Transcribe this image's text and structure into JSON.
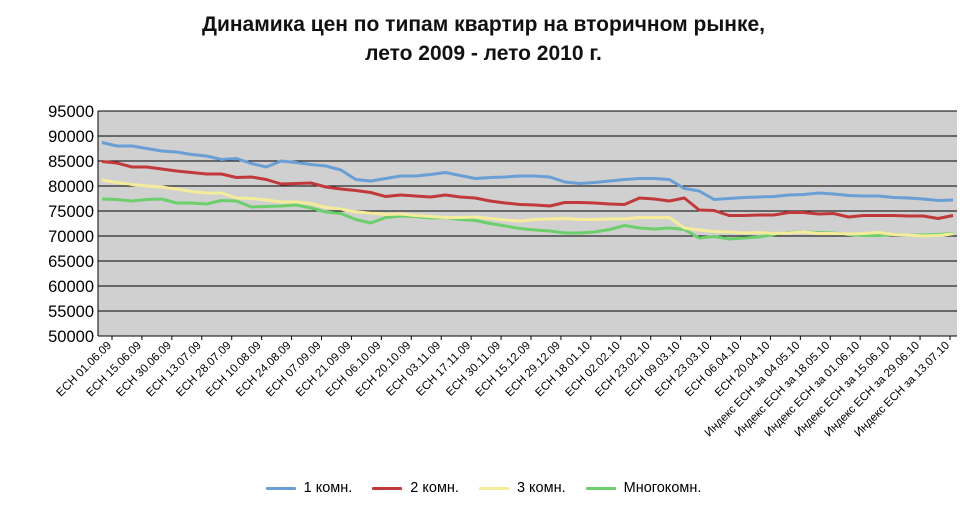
{
  "chart_data": {
    "type": "line",
    "title_line1": "Динамика цен по типам квартир на вторичном рынке,",
    "title_line2": "лето 2009 - лето 2010 г.",
    "xlabel": "",
    "ylabel": "",
    "ylim": [
      50000,
      95000
    ],
    "y_ticks": [
      "95000",
      "90000",
      "85000",
      "80000",
      "75000",
      "70000",
      "65000",
      "60000",
      "55000",
      "50000"
    ],
    "grid": true,
    "legend_position": "bottom",
    "x_tick_labels": [
      "ЕСН 01.06.09",
      "ЕСН 15.06.09",
      "ЕСН 30.06.09",
      "ЕСН 13.07.09",
      "ЕСН 28.07.09",
      "ЕСН 10.08.09",
      "ЕСН 24.08.09",
      "ЕСН 07.09.09",
      "ЕСН 21.09.09",
      "ЕСН 06.10.09",
      "ЕСН 20.10.09",
      "ЕСН 03.11.09",
      "ЕСН 17.11.09",
      "ЕСН 30.11.09",
      "ЕСН 15.12.09",
      "ЕСН 29.12.09",
      "ЕСН 18.01.10",
      "ЕСН 02.02.10",
      "ЕСН 23.02.10",
      "ЕСН 09.03.10",
      "ЕСН 23.03.10",
      "ЕСН 06.04.10",
      "ЕСН 20.04.10",
      "Индекс ЕСН за 04.05.10",
      "Индекс ЕСН за 18.05.10",
      "Индекс ЕСН за 01.06.10",
      "Индекс ЕСН за 15.06.10",
      "Индекс ЕСН за 29.06.10",
      "Индекс ЕСН за 13.07.10"
    ],
    "series": [
      {
        "name": "1 комн.",
        "color": "#6a9fd6",
        "values": [
          88700,
          88000,
          88000,
          87500,
          87000,
          86800,
          86300,
          86000,
          85300,
          85500,
          84500,
          83800,
          85000,
          84700,
          84300,
          84000,
          83200,
          81300,
          81000,
          81500,
          82000,
          82000,
          82300,
          82700,
          82100,
          81500,
          81700,
          81800,
          82000,
          82000,
          81800,
          80800,
          80500,
          80700,
          81000,
          81300,
          81500,
          81500,
          81300,
          79500,
          79000,
          77300,
          77500,
          77700,
          77800,
          77900,
          78200,
          78300,
          78600,
          78400,
          78100,
          78000,
          78000,
          77700,
          77600,
          77400,
          77100,
          77200
        ]
      },
      {
        "name": "2 комн.",
        "color": "#c0393b",
        "values": [
          84900,
          84600,
          83800,
          83800,
          83400,
          83000,
          82700,
          82400,
          82400,
          81700,
          81800,
          81300,
          80400,
          80500,
          80600,
          79800,
          79400,
          79100,
          78700,
          77900,
          78200,
          78000,
          77800,
          78200,
          77800,
          77600,
          77000,
          76600,
          76300,
          76200,
          76000,
          76700,
          76700,
          76600,
          76400,
          76300,
          77600,
          77400,
          77000,
          77600,
          75200,
          75100,
          74100,
          74100,
          74200,
          74200,
          74700,
          74700,
          74400,
          74500,
          73800,
          74100,
          74100,
          74100,
          74000,
          74000,
          73500,
          74100
        ]
      },
      {
        "name": "3 комн.",
        "color": "#f4ec9a",
        "values": [
          81200,
          80700,
          80300,
          80000,
          79800,
          79400,
          78900,
          78600,
          78600,
          77600,
          77500,
          77200,
          76800,
          76800,
          76500,
          75700,
          75400,
          74800,
          74600,
          74300,
          74400,
          74100,
          73900,
          73700,
          73700,
          73800,
          73500,
          73200,
          73000,
          73300,
          73400,
          73500,
          73300,
          73300,
          73400,
          73400,
          73700,
          73700,
          73700,
          71600,
          71200,
          70900,
          70800,
          70600,
          70700,
          70500,
          70600,
          70800,
          70500,
          70500,
          70400,
          70500,
          70700,
          70300,
          70200,
          70000,
          70100,
          70400
        ]
      },
      {
        "name": "Многокомн.",
        "color": "#6dce6c",
        "values": [
          77400,
          77300,
          77000,
          77300,
          77400,
          76600,
          76600,
          76400,
          77100,
          77000,
          75800,
          75900,
          76000,
          76200,
          75600,
          74800,
          74500,
          73300,
          72600,
          73700,
          74000,
          73900,
          73600,
          73700,
          73300,
          73100,
          72500,
          72000,
          71500,
          71200,
          71000,
          70600,
          70600,
          70800,
          71300,
          72100,
          71600,
          71400,
          71600,
          71300,
          69600,
          69900,
          69400,
          69600,
          69800,
          70300,
          70700,
          70800,
          70700,
          70600,
          70300,
          70100,
          70100,
          70300,
          70200,
          70200,
          70300,
          70500
        ]
      }
    ]
  }
}
